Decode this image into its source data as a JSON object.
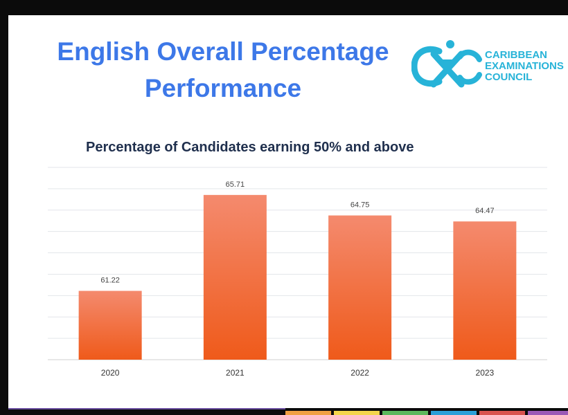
{
  "slide": {
    "title_line1": "English Overall Percentage",
    "title_line2": "Performance"
  },
  "logo": {
    "monogram": "CXC",
    "line1": "CARIBBEAN",
    "line2": "EXAMINATIONS",
    "line3": "COUNCIL",
    "color": "#27b3d8"
  },
  "chart_data": {
    "type": "bar",
    "title": "Percentage of Candidates earning 50% and above",
    "categories": [
      "2020",
      "2021",
      "2022",
      "2023"
    ],
    "values": [
      61.22,
      65.71,
      64.75,
      64.47
    ],
    "data_labels": [
      "61.22",
      "65.71",
      "64.75",
      "64.47"
    ],
    "ylim": [
      58,
      67
    ],
    "grid": true,
    "bar_color_top": "#f48a6e",
    "bar_color_bottom": "#ef5a1a",
    "xlabel": "",
    "ylabel": ""
  },
  "footer_colors": [
    "#f0a040",
    "#f3d54a",
    "#5cb85c",
    "#2a9fd8",
    "#d9534f",
    "#9b59b6"
  ]
}
